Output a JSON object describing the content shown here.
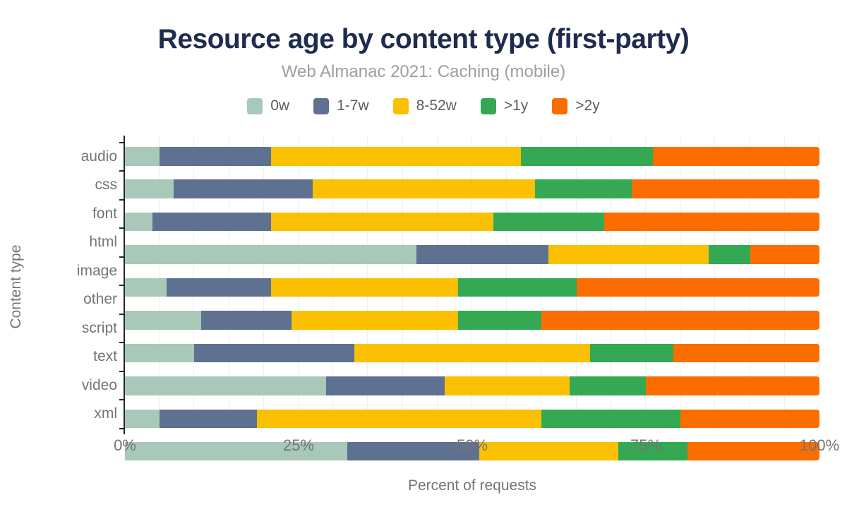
{
  "header": {
    "title": "Resource age by content type (first-party)",
    "subtitle": "Web Almanac 2021: Caching (mobile)"
  },
  "chart_data": {
    "type": "bar",
    "stacked": true,
    "orientation": "horizontal",
    "title": "Resource age by content type (first-party)",
    "subtitle": "Web Almanac 2021: Caching (mobile)",
    "xlabel": "Percent of requests",
    "ylabel": "Content type",
    "xlim": [
      0,
      100
    ],
    "x_tick_labels": [
      "0%",
      "25%",
      "50%",
      "75%",
      "100%"
    ],
    "x_tick_values": [
      0,
      25,
      50,
      75,
      100
    ],
    "grid": {
      "vertical_step_percent": 5,
      "color": "#efefef",
      "visible": true
    },
    "legend_position": "top",
    "categories": [
      "audio",
      "css",
      "font",
      "html",
      "image",
      "other",
      "script",
      "text",
      "video",
      "xml"
    ],
    "series": [
      {
        "name": "0w",
        "color": "#a8c8b9",
        "values": [
          5,
          7,
          4,
          42,
          6,
          11,
          10,
          29,
          5,
          32
        ]
      },
      {
        "name": "1-7w",
        "color": "#5e7191",
        "values": [
          16,
          20,
          17,
          19,
          15,
          13,
          23,
          17,
          14,
          19
        ]
      },
      {
        "name": "8-52w",
        "color": "#fbc002",
        "values": [
          36,
          32,
          32,
          23,
          27,
          24,
          34,
          18,
          41,
          20
        ]
      },
      {
        "name": ">1y",
        "color": "#34a853",
        "values": [
          19,
          14,
          16,
          6,
          17,
          12,
          12,
          11,
          20,
          10
        ]
      },
      {
        "name": ">2y",
        "color": "#fc6d00",
        "values": [
          24,
          27,
          31,
          10,
          35,
          40,
          21,
          25,
          20,
          19
        ]
      }
    ]
  },
  "colors": {
    "title": "#1e2c4f",
    "subtitle": "#9e9e9e",
    "axis_text": "#757575",
    "axis_line": "#262626",
    "gridline": "#efefef",
    "background": "#ffffff"
  }
}
